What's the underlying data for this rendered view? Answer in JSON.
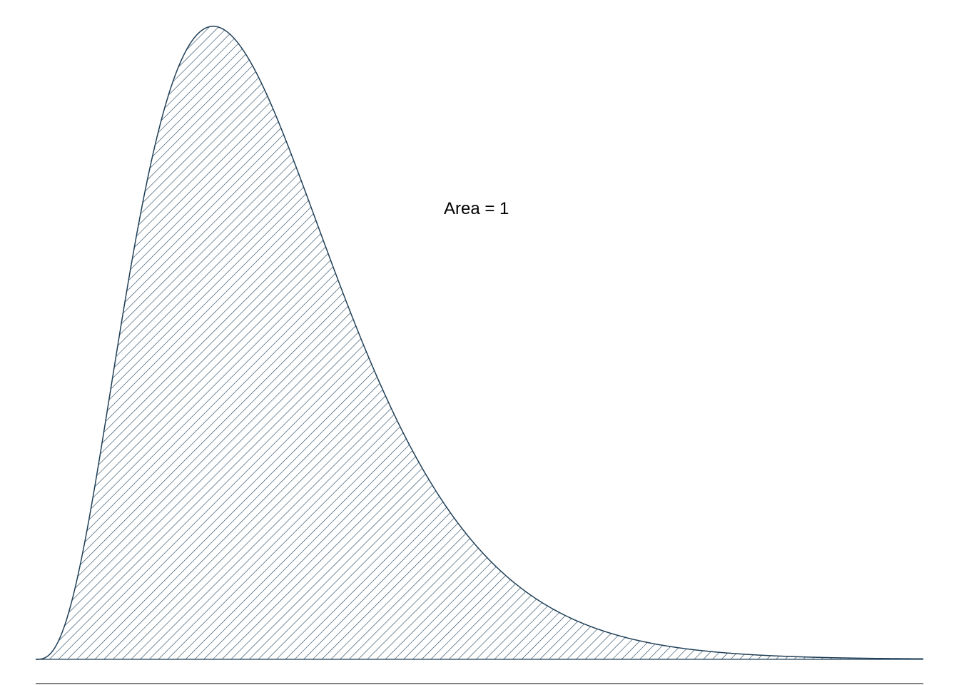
{
  "chart_data": {
    "type": "area",
    "title": "",
    "xlabel": "",
    "ylabel": "",
    "distribution": "gamma",
    "shape": 4,
    "scale": 1,
    "xlim": [
      0,
      15
    ],
    "ylim": [
      0,
      0.224
    ],
    "x": [
      0,
      0.5,
      1,
      1.5,
      2,
      2.5,
      3,
      3.5,
      4,
      4.5,
      5,
      5.5,
      6,
      6.5,
      7,
      7.5,
      8,
      8.5,
      9,
      9.5,
      10,
      10.5,
      11,
      11.5,
      12,
      12.5,
      13,
      13.5,
      14,
      14.5,
      15
    ],
    "y": [
      0,
      0.0126,
      0.0613,
      0.1255,
      0.1804,
      0.2138,
      0.224,
      0.2158,
      0.1954,
      0.1687,
      0.1404,
      0.1133,
      0.0892,
      0.0688,
      0.0521,
      0.0389,
      0.0286,
      0.0208,
      0.015,
      0.0107,
      0.0076,
      0.0053,
      0.0037,
      0.0026,
      0.0018,
      0.0012,
      0.0008,
      0.0006,
      0.0004,
      0.0003,
      0.0002
    ],
    "fill_pattern": "diagonal-hatch",
    "color": "#1f3f57",
    "grid": false,
    "annotation": "Area = 1"
  }
}
